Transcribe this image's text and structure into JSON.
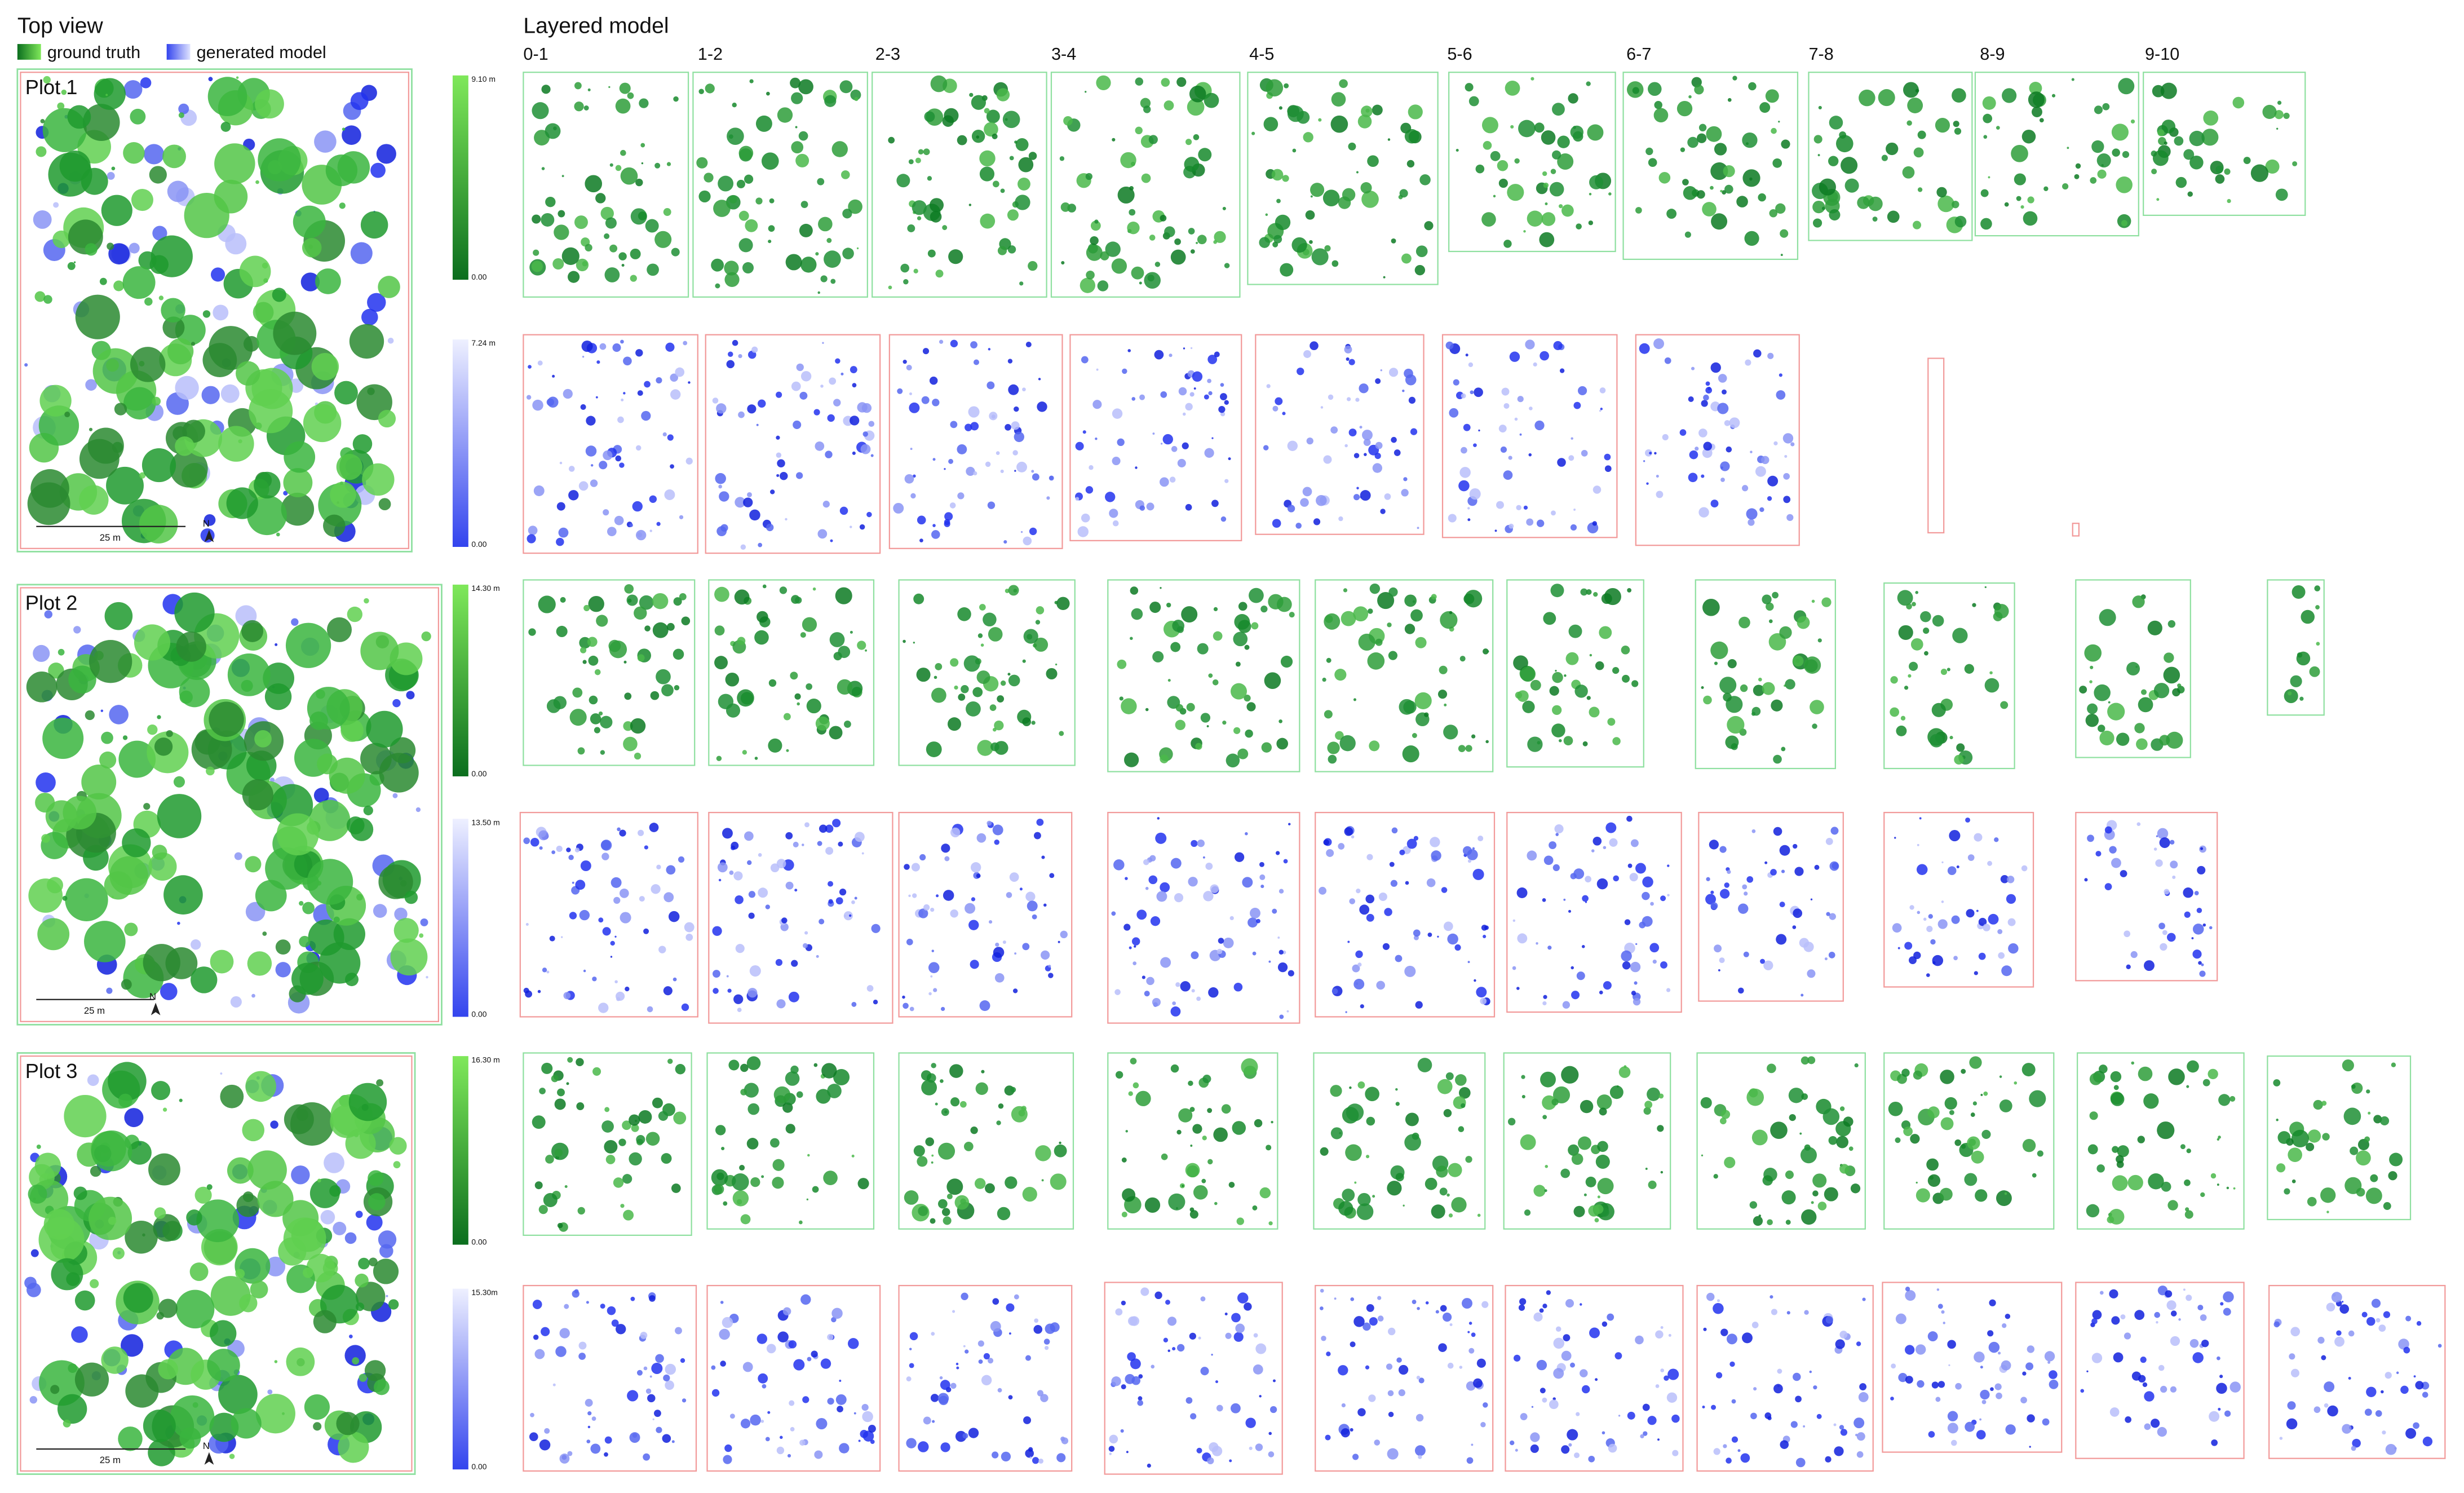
{
  "header": {
    "top_view": "Top view",
    "legend": [
      "ground truth",
      "generated model"
    ],
    "layered_model": "Layered model",
    "layers": [
      "0-1",
      "1-2",
      "2-3",
      "3-4",
      "4-5",
      "5-6",
      "6-7",
      "7-8",
      "8-9",
      "9-10"
    ]
  },
  "plots": [
    {
      "label": "Plot 1",
      "scale_bar": "25 m",
      "north": "N",
      "ground_truth_colorbar": {
        "max": "9.10 m",
        "min": "0.00"
      },
      "generated_colorbar": {
        "max": "7.24 m",
        "min": "0.00"
      }
    },
    {
      "label": "Plot 2",
      "scale_bar": "25 m",
      "north": "N",
      "ground_truth_colorbar": {
        "max": "14.30 m",
        "min": "0.00"
      },
      "generated_colorbar": {
        "max": "13.50 m",
        "min": "0.00"
      }
    },
    {
      "label": "Plot 3",
      "scale_bar": "25 m",
      "north": "N",
      "ground_truth_colorbar": {
        "max": "16.30 m",
        "min": "0.00"
      },
      "generated_colorbar": {
        "max": "15.30m",
        "min": "0.00"
      }
    }
  ]
}
